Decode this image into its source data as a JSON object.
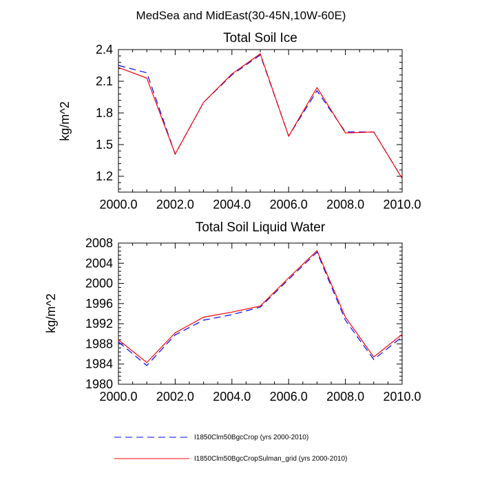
{
  "figure": {
    "suptitle": "MedSea and MidEast(30-45N,10W-60E)"
  },
  "series_styles": [
    {
      "color": "#0000ff",
      "dash": "dashed"
    },
    {
      "color": "#ff0000",
      "dash": "solid"
    }
  ],
  "legend": [
    {
      "label": "I1850Clm50BgcCrop (yrs 2000-2010)",
      "color": "#0000ff",
      "dash": "dashed"
    },
    {
      "label": "I1850Clm50BgcCropSulman_grid (yrs 2000-2010)",
      "color": "#ff0000",
      "dash": "solid"
    }
  ],
  "chart_data": [
    {
      "type": "line",
      "title": "Total Soil Ice",
      "xlabel": "",
      "ylabel": "kg/m^2",
      "xlim": [
        2000,
        2010
      ],
      "ylim": [
        1.05,
        2.4
      ],
      "xticks": [
        2000,
        2002,
        2004,
        2006,
        2008,
        2010
      ],
      "xtick_labels": [
        "2000.0",
        "2002.0",
        "2004.0",
        "2006.0",
        "2008.0",
        "2010.0"
      ],
      "yticks": [
        1.2,
        1.5,
        1.8,
        2.1,
        2.4
      ],
      "ytick_labels": [
        "1.2",
        "1.5",
        "1.8",
        "2.1",
        "2.4"
      ],
      "grid": false,
      "x": [
        2000,
        2001,
        2002,
        2003,
        2004,
        2005,
        2006,
        2007,
        2008,
        2009,
        2010
      ],
      "series": [
        {
          "name": "I1850Clm50BgcCrop (yrs 2000-2010)",
          "values": [
            2.25,
            2.18,
            1.41,
            1.9,
            2.16,
            2.35,
            1.58,
            2.01,
            1.62,
            1.62,
            1.18
          ]
        },
        {
          "name": "I1850Clm50BgcCropSulman_grid (yrs 2000-2010)",
          "values": [
            2.23,
            2.13,
            1.41,
            1.9,
            2.17,
            2.36,
            1.58,
            2.04,
            1.61,
            1.62,
            1.18
          ]
        }
      ]
    },
    {
      "type": "line",
      "title": "Total Soil Liquid Water",
      "xlabel": "",
      "ylabel": "kg/m^2",
      "xlim": [
        2000,
        2010
      ],
      "ylim": [
        1980,
        2008
      ],
      "xticks": [
        2000,
        2002,
        2004,
        2006,
        2008,
        2010
      ],
      "xtick_labels": [
        "2000.0",
        "2002.0",
        "2004.0",
        "2006.0",
        "2008.0",
        "2010.0"
      ],
      "yticks": [
        1980,
        1984,
        1988,
        1992,
        1996,
        2000,
        2004,
        2008
      ],
      "ytick_labels": [
        "1980",
        "1984",
        "1988",
        "1992",
        "1996",
        "2000",
        "2004",
        "2008"
      ],
      "grid": false,
      "x": [
        2000,
        2001,
        2002,
        2003,
        2004,
        2005,
        2006,
        2007,
        2008,
        2009,
        2010
      ],
      "series": [
        {
          "name": "I1850Clm50BgcCrop (yrs 2000-2010)",
          "values": [
            1988.4,
            1983.7,
            1989.8,
            1992.7,
            1993.8,
            1995.3,
            2000.8,
            2006.2,
            1992.7,
            1984.9,
            1989.4
          ]
        },
        {
          "name": "I1850Clm50BgcCropSulman_grid (yrs 2000-2010)",
          "values": [
            1988.8,
            1984.3,
            1990.2,
            1993.3,
            1994.3,
            1995.5,
            2001.1,
            2006.5,
            1993.3,
            1985.4,
            1989.9
          ]
        }
      ]
    }
  ]
}
